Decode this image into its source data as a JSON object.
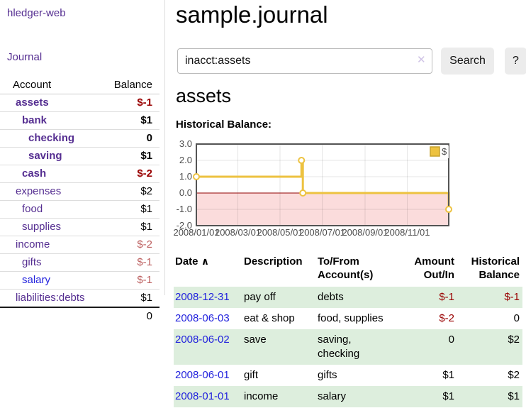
{
  "colors": {
    "accent_purple": "#552e91",
    "link_blue": "#2222dd",
    "negative_strong": "#990000",
    "negative_soft": "#bc5e5e",
    "row_stripe_green": "#ddeedd"
  },
  "sidebar": {
    "app_title": "hledger-web",
    "nav": {
      "journal_label": "Journal"
    },
    "table": {
      "account_header": "Account",
      "balance_header": "Balance"
    },
    "accounts": [
      {
        "name": "assets",
        "indent": 1,
        "bold": true,
        "balance": "$-1",
        "balance_style": "neg-strong",
        "link_color": "purple"
      },
      {
        "name": "bank",
        "indent": 2,
        "bold": true,
        "balance": "$1",
        "balance_style": "pos",
        "link_color": "purple"
      },
      {
        "name": "checking",
        "indent": 3,
        "bold": true,
        "balance": "0",
        "balance_style": "pos",
        "link_color": "purple"
      },
      {
        "name": "saving",
        "indent": 3,
        "bold": true,
        "balance": "$1",
        "balance_style": "pos",
        "link_color": "purple"
      },
      {
        "name": "cash",
        "indent": 2,
        "bold": true,
        "balance": "$-2",
        "balance_style": "neg-strong",
        "link_color": "purple"
      },
      {
        "name": "expenses",
        "indent": 1,
        "bold": false,
        "balance": "$2",
        "balance_style": "pos",
        "link_color": "purple"
      },
      {
        "name": "food",
        "indent": 2,
        "bold": false,
        "balance": "$1",
        "balance_style": "pos",
        "link_color": "purple"
      },
      {
        "name": "supplies",
        "indent": 2,
        "bold": false,
        "balance": "$1",
        "balance_style": "pos",
        "link_color": "purple"
      },
      {
        "name": "income",
        "indent": 1,
        "bold": false,
        "balance": "$-2",
        "balance_style": "neg-soft",
        "link_color": "purple"
      },
      {
        "name": "gifts",
        "indent": 2,
        "bold": false,
        "balance": "$-1",
        "balance_style": "neg-soft",
        "link_color": "purple"
      },
      {
        "name": "salary",
        "indent": 2,
        "bold": false,
        "balance": "$-1",
        "balance_style": "neg-soft",
        "link_color": "blue"
      },
      {
        "name": "liabilities:debts",
        "indent": 1,
        "bold": false,
        "balance": "$1",
        "balance_style": "pos",
        "link_color": "purple"
      }
    ],
    "total": "0"
  },
  "header": {
    "title": "sample.journal"
  },
  "search": {
    "value": "inacct:assets",
    "clear_icon": "✕",
    "button_label": "Search",
    "help_label": "?"
  },
  "register": {
    "heading": "assets",
    "chart_title": "Historical Balance:"
  },
  "chart_data": {
    "type": "line",
    "step": true,
    "title": "Historical Balance:",
    "x_min": "2008-01-01",
    "x_max": "2008-12-31",
    "y_min": -2,
    "y_max": 3,
    "grid": true,
    "legend_position": "top-right",
    "x_ticks": [
      {
        "date": "2008-01-01",
        "label": "2008/01/01"
      },
      {
        "date": "2008-03-01",
        "label": "2008/03/01"
      },
      {
        "date": "2008-05-01",
        "label": "2008/05/01"
      },
      {
        "date": "2008-07-01",
        "label": "2008/07/01"
      },
      {
        "date": "2008-09-01",
        "label": "2008/09/01"
      },
      {
        "date": "2008-11-01",
        "label": "2008/11/01"
      }
    ],
    "y_ticks": [
      {
        "value": 3,
        "label": "3.0"
      },
      {
        "value": 2,
        "label": "2.0"
      },
      {
        "value": 1,
        "label": "1.0"
      },
      {
        "value": 0,
        "label": "0.0"
      },
      {
        "value": -1,
        "label": "-1.0"
      },
      {
        "value": -2,
        "label": "-2.0"
      }
    ],
    "series": [
      {
        "name": "$",
        "color": "#edc240",
        "points": [
          {
            "date": "2008-01-01",
            "value": 1
          },
          {
            "date": "2008-06-01",
            "value": 2
          },
          {
            "date": "2008-06-03",
            "value": 0
          },
          {
            "date": "2008-12-31",
            "value": -1
          }
        ]
      }
    ],
    "style": {
      "negative_region_color": "#fbdcdc",
      "zero_line_color": "#910000",
      "border_color": "#545454",
      "grid_color": "rgba(0,0,0,0.1)",
      "tick_label_color": "#4d4d4d",
      "legend_swatch_border": "#c7a22e"
    }
  },
  "transactions": {
    "headers": {
      "date": "Date",
      "sort_icon": "∧",
      "description": "Description",
      "accounts": "To/From Account(s)",
      "amount": "Amount Out/In",
      "balance": "Historical Balance"
    },
    "rows": [
      {
        "date": "2008-12-31",
        "description": "pay off",
        "accounts": "debts",
        "amount": "$-1",
        "amount_neg": true,
        "balance": "$-1",
        "balance_neg": true
      },
      {
        "date": "2008-06-03",
        "description": "eat & shop",
        "accounts": "food, supplies",
        "amount": "$-2",
        "amount_neg": true,
        "balance": "0",
        "balance_neg": false
      },
      {
        "date": "2008-06-02",
        "description": "save",
        "accounts": "saving, checking",
        "amount": "0",
        "amount_neg": false,
        "balance": "$2",
        "balance_neg": false
      },
      {
        "date": "2008-06-01",
        "description": "gift",
        "accounts": "gifts",
        "amount": "$1",
        "amount_neg": false,
        "balance": "$2",
        "balance_neg": false
      },
      {
        "date": "2008-01-01",
        "description": "income",
        "accounts": "salary",
        "amount": "$1",
        "amount_neg": false,
        "balance": "$1",
        "balance_neg": false
      }
    ]
  }
}
